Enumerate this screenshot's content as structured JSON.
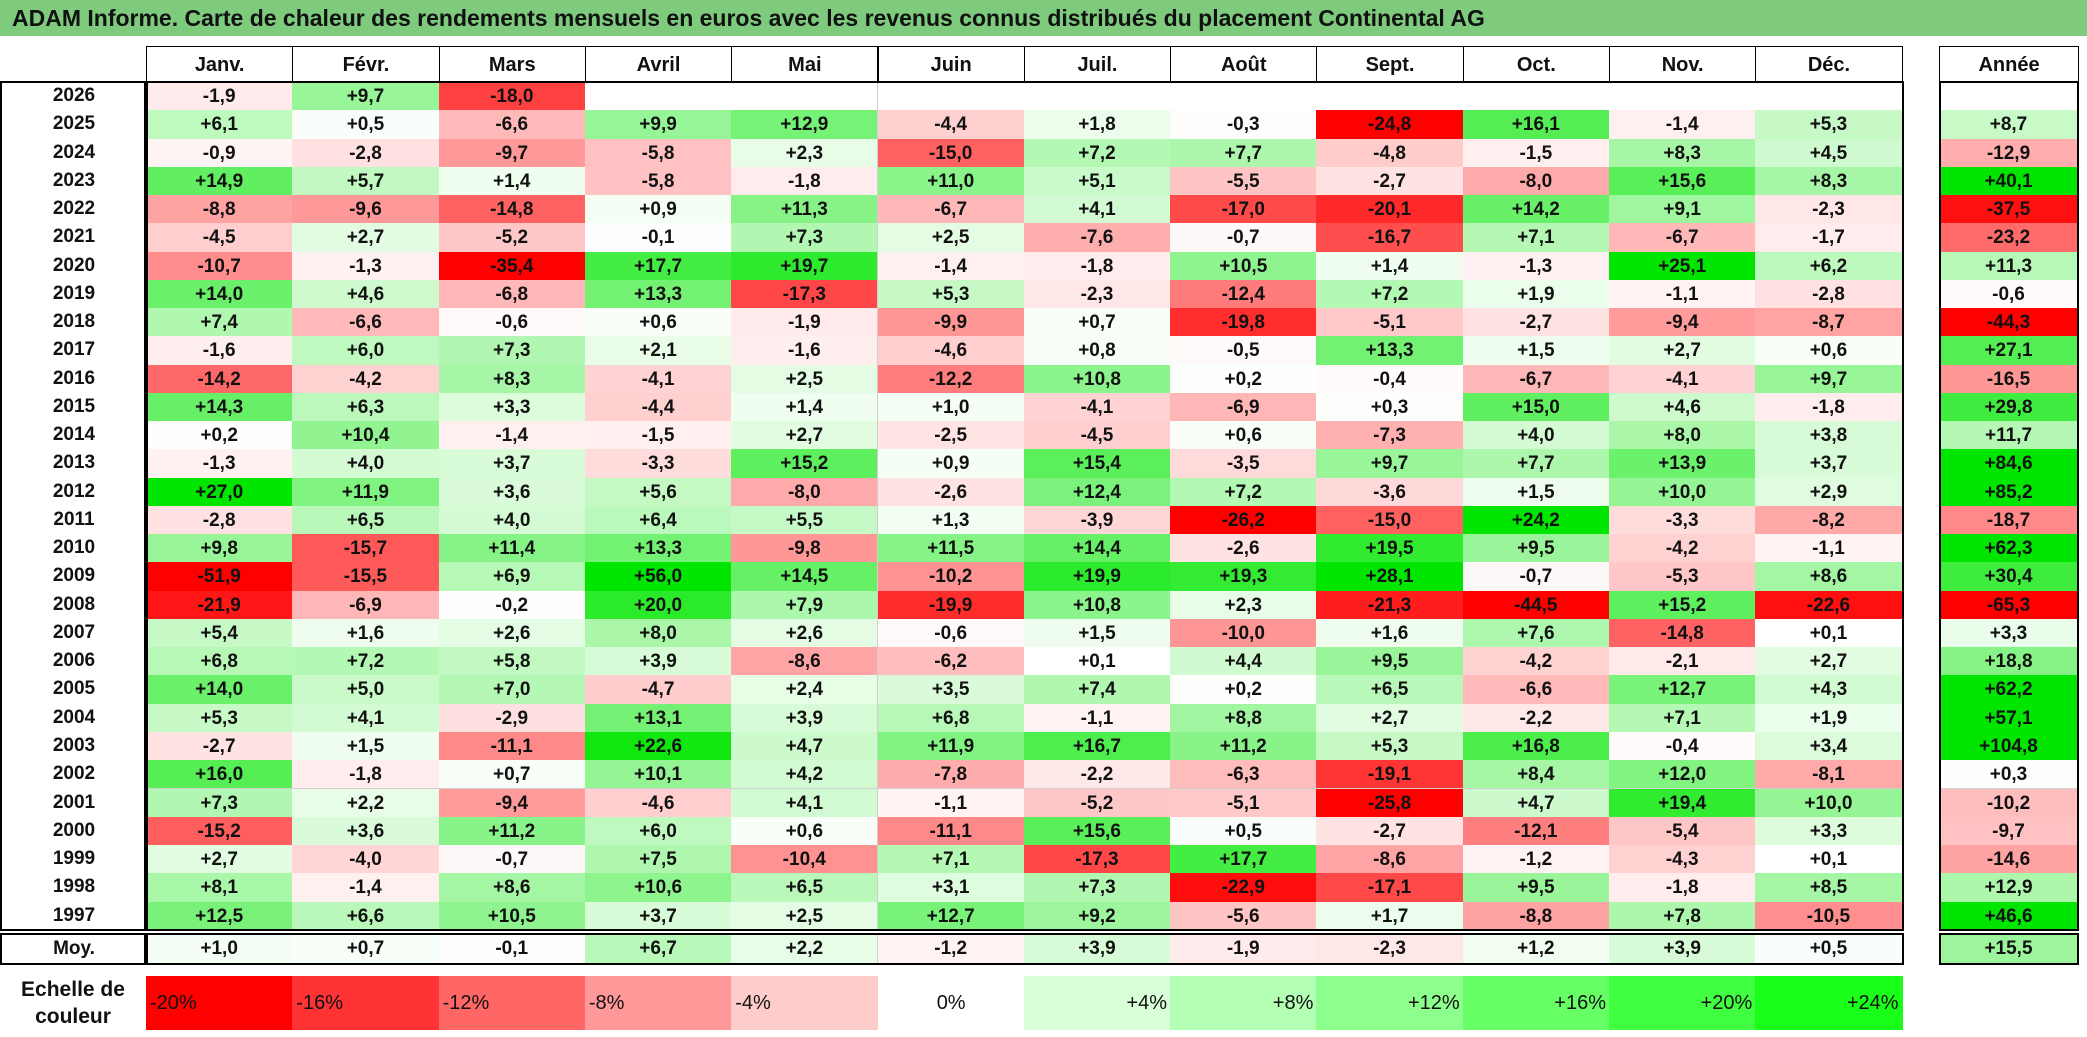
{
  "title": "ADAM Informe. Carte de chaleur des rendements mensuels en euros avec les revenus connus distribués du placement Continental AG",
  "chart_data": {
    "type": "heatmap",
    "title": "ADAM Informe. Carte de chaleur des rendements mensuels en euros avec les revenus connus distribués du placement Continental AG",
    "months": [
      "Janv.",
      "Févr.",
      "Mars",
      "Avril",
      "Mai",
      "Juin",
      "Juil.",
      "Août",
      "Sept.",
      "Oct.",
      "Nov.",
      "Déc."
    ],
    "year_header": "Année",
    "rows": [
      {
        "year": "2026",
        "months": [
          "-1,9",
          "+9,7",
          "-18,0",
          "",
          "",
          "",
          "",
          "",
          "",
          "",
          "",
          ""
        ],
        "annual": ""
      },
      {
        "year": "2025",
        "months": [
          "+6,1",
          "+0,5",
          "-6,6",
          "+9,9",
          "+12,9",
          "-4,4",
          "+1,8",
          "-0,3",
          "-24,8",
          "+16,1",
          "-1,4",
          "+5,3"
        ],
        "annual": "+8,7"
      },
      {
        "year": "2024",
        "months": [
          "-0,9",
          "-2,8",
          "-9,7",
          "-5,8",
          "+2,3",
          "-15,0",
          "+7,2",
          "+7,7",
          "-4,8",
          "-1,5",
          "+8,3",
          "+4,5"
        ],
        "annual": "-12,9"
      },
      {
        "year": "2023",
        "months": [
          "+14,9",
          "+5,7",
          "+1,4",
          "-5,8",
          "-1,8",
          "+11,0",
          "+5,1",
          "-5,5",
          "-2,7",
          "-8,0",
          "+15,6",
          "+8,3"
        ],
        "annual": "+40,1"
      },
      {
        "year": "2022",
        "months": [
          "-8,8",
          "-9,6",
          "-14,8",
          "+0,9",
          "+11,3",
          "-6,7",
          "+4,1",
          "-17,0",
          "-20,1",
          "+14,2",
          "+9,1",
          "-2,3"
        ],
        "annual": "-37,5"
      },
      {
        "year": "2021",
        "months": [
          "-4,5",
          "+2,7",
          "-5,2",
          "-0,1",
          "+7,3",
          "+2,5",
          "-7,6",
          "-0,7",
          "-16,7",
          "+7,1",
          "-6,7",
          "-1,7"
        ],
        "annual": "-23,2"
      },
      {
        "year": "2020",
        "months": [
          "-10,7",
          "-1,3",
          "-35,4",
          "+17,7",
          "+19,7",
          "-1,4",
          "-1,8",
          "+10,5",
          "+1,4",
          "-1,3",
          "+25,1",
          "+6,2"
        ],
        "annual": "+11,3"
      },
      {
        "year": "2019",
        "months": [
          "+14,0",
          "+4,6",
          "-6,8",
          "+13,3",
          "-17,3",
          "+5,3",
          "-2,3",
          "-12,4",
          "+7,2",
          "+1,9",
          "-1,1",
          "-2,8"
        ],
        "annual": "-0,6"
      },
      {
        "year": "2018",
        "months": [
          "+7,4",
          "-6,6",
          "-0,6",
          "+0,6",
          "-1,9",
          "-9,9",
          "+0,7",
          "-19,8",
          "-5,1",
          "-2,7",
          "-9,4",
          "-8,7"
        ],
        "annual": "-44,3"
      },
      {
        "year": "2017",
        "months": [
          "-1,6",
          "+6,0",
          "+7,3",
          "+2,1",
          "-1,6",
          "-4,6",
          "+0,8",
          "-0,5",
          "+13,3",
          "+1,5",
          "+2,7",
          "+0,6"
        ],
        "annual": "+27,1"
      },
      {
        "year": "2016",
        "months": [
          "-14,2",
          "-4,2",
          "+8,3",
          "-4,1",
          "+2,5",
          "-12,2",
          "+10,8",
          "+0,2",
          "-0,4",
          "-6,7",
          "-4,1",
          "+9,7"
        ],
        "annual": "-16,5"
      },
      {
        "year": "2015",
        "months": [
          "+14,3",
          "+6,3",
          "+3,3",
          "-4,4",
          "+1,4",
          "+1,0",
          "-4,1",
          "-6,9",
          "+0,3",
          "+15,0",
          "+4,6",
          "-1,8"
        ],
        "annual": "+29,8"
      },
      {
        "year": "2014",
        "months": [
          "+0,2",
          "+10,4",
          "-1,4",
          "-1,5",
          "+2,7",
          "-2,5",
          "-4,5",
          "+0,6",
          "-7,3",
          "+4,0",
          "+8,0",
          "+3,8"
        ],
        "annual": "+11,7"
      },
      {
        "year": "2013",
        "months": [
          "-1,3",
          "+4,0",
          "+3,7",
          "-3,3",
          "+15,2",
          "+0,9",
          "+15,4",
          "-3,5",
          "+9,7",
          "+7,7",
          "+13,9",
          "+3,7"
        ],
        "annual": "+84,6"
      },
      {
        "year": "2012",
        "months": [
          "+27,0",
          "+11,9",
          "+3,6",
          "+5,6",
          "-8,0",
          "-2,6",
          "+12,4",
          "+7,2",
          "-3,6",
          "+1,5",
          "+10,0",
          "+2,9"
        ],
        "annual": "+85,2"
      },
      {
        "year": "2011",
        "months": [
          "-2,8",
          "+6,5",
          "+4,0",
          "+6,4",
          "+5,5",
          "+1,3",
          "-3,9",
          "-26,2",
          "-15,0",
          "+24,2",
          "-3,3",
          "-8,2"
        ],
        "annual": "-18,7"
      },
      {
        "year": "2010",
        "months": [
          "+9,8",
          "-15,7",
          "+11,4",
          "+13,3",
          "-9,8",
          "+11,5",
          "+14,4",
          "-2,6",
          "+19,5",
          "+9,5",
          "-4,2",
          "-1,1"
        ],
        "annual": "+62,3"
      },
      {
        "year": "2009",
        "months": [
          "-51,9",
          "-15,5",
          "+6,9",
          "+56,0",
          "+14,5",
          "-10,2",
          "+19,9",
          "+19,3",
          "+28,1",
          "-0,7",
          "-5,3",
          "+8,6"
        ],
        "annual": "+30,4"
      },
      {
        "year": "2008",
        "months": [
          "-21,9",
          "-6,9",
          "-0,2",
          "+20,0",
          "+7,9",
          "-19,9",
          "+10,8",
          "+2,3",
          "-21,3",
          "-44,5",
          "+15,2",
          "-22,6"
        ],
        "annual": "-65,3"
      },
      {
        "year": "2007",
        "months": [
          "+5,4",
          "+1,6",
          "+2,6",
          "+8,0",
          "+2,6",
          "-0,6",
          "+1,5",
          "-10,0",
          "+1,6",
          "+7,6",
          "-14,8",
          "+0,1"
        ],
        "annual": "+3,3"
      },
      {
        "year": "2006",
        "months": [
          "+6,8",
          "+7,2",
          "+5,8",
          "+3,9",
          "-8,6",
          "-6,2",
          "+0,1",
          "+4,4",
          "+9,5",
          "-4,2",
          "-2,1",
          "+2,7"
        ],
        "annual": "+18,8"
      },
      {
        "year": "2005",
        "months": [
          "+14,0",
          "+5,0",
          "+7,0",
          "-4,7",
          "+2,4",
          "+3,5",
          "+7,4",
          "+0,2",
          "+6,5",
          "-6,6",
          "+12,7",
          "+4,3"
        ],
        "annual": "+62,2"
      },
      {
        "year": "2004",
        "months": [
          "+5,3",
          "+4,1",
          "-2,9",
          "+13,1",
          "+3,9",
          "+6,8",
          "-1,1",
          "+8,8",
          "+2,7",
          "-2,2",
          "+7,1",
          "+1,9"
        ],
        "annual": "+57,1"
      },
      {
        "year": "2003",
        "months": [
          "-2,7",
          "+1,5",
          "-11,1",
          "+22,6",
          "+4,7",
          "+11,9",
          "+16,7",
          "+11,2",
          "+5,3",
          "+16,8",
          "-0,4",
          "+3,4"
        ],
        "annual": "+104,8"
      },
      {
        "year": "2002",
        "months": [
          "+16,0",
          "-1,8",
          "+0,7",
          "+10,1",
          "+4,2",
          "-7,8",
          "-2,2",
          "-6,3",
          "-19,1",
          "+8,4",
          "+12,0",
          "-8,1"
        ],
        "annual": "+0,3"
      },
      {
        "year": "2001",
        "months": [
          "+7,3",
          "+2,2",
          "-9,4",
          "-4,6",
          "+4,1",
          "-1,1",
          "-5,2",
          "-5,1",
          "-25,8",
          "+4,7",
          "+19,4",
          "+10,0"
        ],
        "annual": "-10,2"
      },
      {
        "year": "2000",
        "months": [
          "-15,2",
          "+3,6",
          "+11,2",
          "+6,0",
          "+0,6",
          "-11,1",
          "+15,6",
          "+0,5",
          "-2,7",
          "-12,1",
          "-5,4",
          "+3,3"
        ],
        "annual": "-9,7"
      },
      {
        "year": "1999",
        "months": [
          "+2,7",
          "-4,0",
          "-0,7",
          "+7,5",
          "-10,4",
          "+7,1",
          "-17,3",
          "+17,7",
          "-8,6",
          "-1,2",
          "-4,3",
          "+0,1"
        ],
        "annual": "-14,6"
      },
      {
        "year": "1998",
        "months": [
          "+8,1",
          "-1,4",
          "+8,6",
          "+10,6",
          "+6,5",
          "+3,1",
          "+7,3",
          "-22,9",
          "-17,1",
          "+9,5",
          "-1,8",
          "+8,5"
        ],
        "annual": "+12,9"
      },
      {
        "year": "1997",
        "months": [
          "+12,5",
          "+6,6",
          "+10,5",
          "+3,7",
          "+2,5",
          "+12,7",
          "+9,2",
          "-5,6",
          "+1,7",
          "-8,8",
          "+7,8",
          "-10,5"
        ],
        "annual": "+46,6"
      }
    ],
    "average": {
      "label": "Moy.",
      "months": [
        "+1,0",
        "+0,7",
        "-0,1",
        "+6,7",
        "+2,2",
        "-1,2",
        "+3,9",
        "-1,9",
        "-2,3",
        "+1,2",
        "+3,9",
        "+0,5"
      ],
      "annual": "+15,5"
    },
    "color_scale": {
      "label_line1": "Echelle de",
      "label_line2": "couleur",
      "steps": [
        {
          "label": "-20%",
          "value": -20,
          "color": "#ff0000",
          "align": "left"
        },
        {
          "label": "-16%",
          "value": -16,
          "color": "#ff3333",
          "align": "left"
        },
        {
          "label": "-12%",
          "value": -12,
          "color": "#ff6666",
          "align": "left"
        },
        {
          "label": "-8%",
          "value": -8,
          "color": "#ff9999",
          "align": "left"
        },
        {
          "label": "-4%",
          "value": -4,
          "color": "#ffcccc",
          "align": "left"
        },
        {
          "label": "0%",
          "value": 0,
          "color": "#ffffff",
          "align": "center"
        },
        {
          "label": "+4%",
          "value": 4,
          "color": "#d9ffd9",
          "align": "right"
        },
        {
          "label": "+8%",
          "value": 8,
          "color": "#b3ffb3",
          "align": "right"
        },
        {
          "label": "+12%",
          "value": 12,
          "color": "#8cff8c",
          "align": "right"
        },
        {
          "label": "+16%",
          "value": 16,
          "color": "#66ff66",
          "align": "right"
        },
        {
          "label": "+20%",
          "value": 20,
          "color": "#40ff40",
          "align": "right"
        },
        {
          "label": "+24%",
          "value": 24,
          "color": "#1aff1a",
          "align": "right"
        }
      ]
    }
  }
}
